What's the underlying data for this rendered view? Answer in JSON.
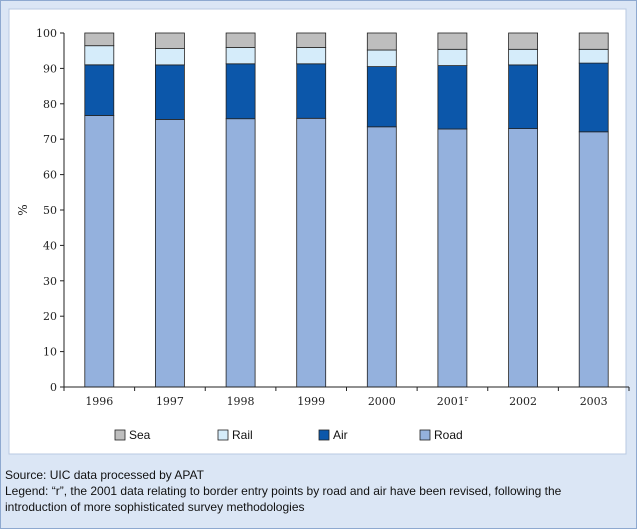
{
  "chart_data": {
    "type": "bar",
    "stacked": true,
    "categories": [
      "1996",
      "1997",
      "1998",
      "1999",
      "2000",
      "2001r",
      "2002",
      "2003"
    ],
    "category_labels": [
      {
        "main": "1996",
        "sup": ""
      },
      {
        "main": "1997",
        "sup": ""
      },
      {
        "main": "1998",
        "sup": ""
      },
      {
        "main": "1999",
        "sup": ""
      },
      {
        "main": "2000",
        "sup": ""
      },
      {
        "main": "2001",
        "sup": "r"
      },
      {
        "main": "2002",
        "sup": ""
      },
      {
        "main": "2003",
        "sup": ""
      }
    ],
    "series": [
      {
        "name": "Road",
        "color": "#94b1dd",
        "values": [
          76.7,
          75.6,
          75.8,
          75.9,
          73.5,
          72.9,
          73.0,
          72.1
        ]
      },
      {
        "name": "Air",
        "color": "#0c57aa",
        "values": [
          14.3,
          15.4,
          15.5,
          15.4,
          17.0,
          17.9,
          18.0,
          19.4
        ]
      },
      {
        "name": "Rail",
        "color": "#d5ecfa",
        "values": [
          5.4,
          4.6,
          4.6,
          4.6,
          4.7,
          4.6,
          4.4,
          3.9
        ]
      },
      {
        "name": "Sea",
        "color": "#bebebe",
        "values": [
          3.6,
          4.4,
          4.1,
          4.1,
          4.8,
          4.6,
          4.6,
          4.6
        ]
      }
    ],
    "legend_order": [
      "Sea",
      "Rail",
      "Air",
      "Road"
    ],
    "legend_position": "bottom",
    "ylabel": "%",
    "ylim": [
      0,
      100
    ],
    "yticks": [
      0,
      10,
      20,
      30,
      40,
      50,
      60,
      70,
      80,
      90,
      100
    ],
    "grid": false
  },
  "notes": {
    "source": "Source: UIC data processed by APAT",
    "legend_note_line1": "Legend: “r”, the 2001 data relating to border entry points by road and air have been revised, following the",
    "legend_note_line2": "introduction of more sophisticated survey methodologies"
  }
}
